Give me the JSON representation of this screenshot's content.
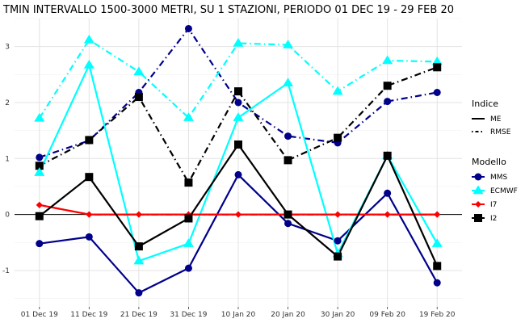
{
  "chart_data": {
    "type": "line",
    "title": "TMIN INTERVALLO 1500-3000 METRI, SU 1 STAZIONI, PERIODO 01 DEC 19  -  29 FEB 20",
    "xlabel": "",
    "ylabel": "",
    "categories": [
      "01 Dec 19",
      "11 Dec 19",
      "21 Dec 19",
      "31 Dec 19",
      "10 Jan 20",
      "20 Jan 20",
      "30 Jan 20",
      "09 Feb 20",
      "19 Feb 20"
    ],
    "y_ticks": [
      -1,
      0,
      1,
      2,
      3
    ],
    "ylim": [
      -1.65,
      3.5
    ],
    "grid": true,
    "legend_position": "right",
    "zero_line": true,
    "legends": {
      "indice": {
        "title": "Indice",
        "entries": [
          {
            "label": "ME",
            "linestyle": "solid"
          },
          {
            "label": "RMSE",
            "linestyle": "dotdash"
          }
        ]
      },
      "modello": {
        "title": "Modello",
        "entries": [
          {
            "label": "MMS",
            "color": "#00008B",
            "marker": "circle"
          },
          {
            "label": "ECMWF",
            "color": "#00FFFF",
            "marker": "triangle"
          },
          {
            "label": "I7",
            "color": "#FF0000",
            "marker": "diamond"
          },
          {
            "label": "I2",
            "color": "#000000",
            "marker": "square"
          }
        ]
      }
    },
    "series": [
      {
        "name": "MMS",
        "indice": "RMSE",
        "color": "#00008B",
        "marker": "circle",
        "values": [
          1.02,
          1.32,
          2.18,
          3.32,
          2.0,
          1.4,
          1.28,
          2.02,
          2.18
        ]
      },
      {
        "name": "ECMWF",
        "indice": "RMSE",
        "color": "#00FFFF",
        "marker": "triangle",
        "values": [
          1.72,
          3.12,
          2.55,
          1.73,
          3.06,
          3.03,
          2.2,
          2.75,
          2.73
        ]
      },
      {
        "name": "I7",
        "indice": "RMSE",
        "color": "#FF0000",
        "marker": "diamond",
        "values": [
          0.17,
          0.0,
          0.0,
          0.0,
          0.0,
          0.0,
          0.0,
          0.0,
          0.0
        ]
      },
      {
        "name": "I2",
        "indice": "RMSE",
        "color": "#000000",
        "marker": "square",
        "values": [
          0.87,
          1.33,
          2.1,
          0.57,
          2.2,
          0.97,
          1.37,
          2.3,
          2.63
        ]
      },
      {
        "name": "MMS",
        "indice": "ME",
        "color": "#00008B",
        "marker": "circle",
        "values": [
          -0.52,
          -0.4,
          -1.4,
          -0.96,
          0.71,
          -0.16,
          -0.47,
          0.38,
          -1.22
        ]
      },
      {
        "name": "ECMWF",
        "indice": "ME",
        "color": "#00FFFF",
        "marker": "triangle",
        "values": [
          0.75,
          2.67,
          -0.83,
          -0.52,
          1.73,
          2.35,
          -0.7,
          1.05,
          -0.52
        ]
      },
      {
        "name": "I7",
        "indice": "ME",
        "color": "#FF0000",
        "marker": "diamond",
        "values": [
          0.17,
          0.0,
          0.0,
          0.0,
          0.0,
          0.0,
          0.0,
          0.0,
          0.0
        ]
      },
      {
        "name": "I2",
        "indice": "ME",
        "color": "#000000",
        "marker": "square",
        "values": [
          -0.03,
          0.67,
          -0.57,
          -0.07,
          1.25,
          0.0,
          -0.75,
          1.05,
          -0.92
        ]
      }
    ]
  }
}
